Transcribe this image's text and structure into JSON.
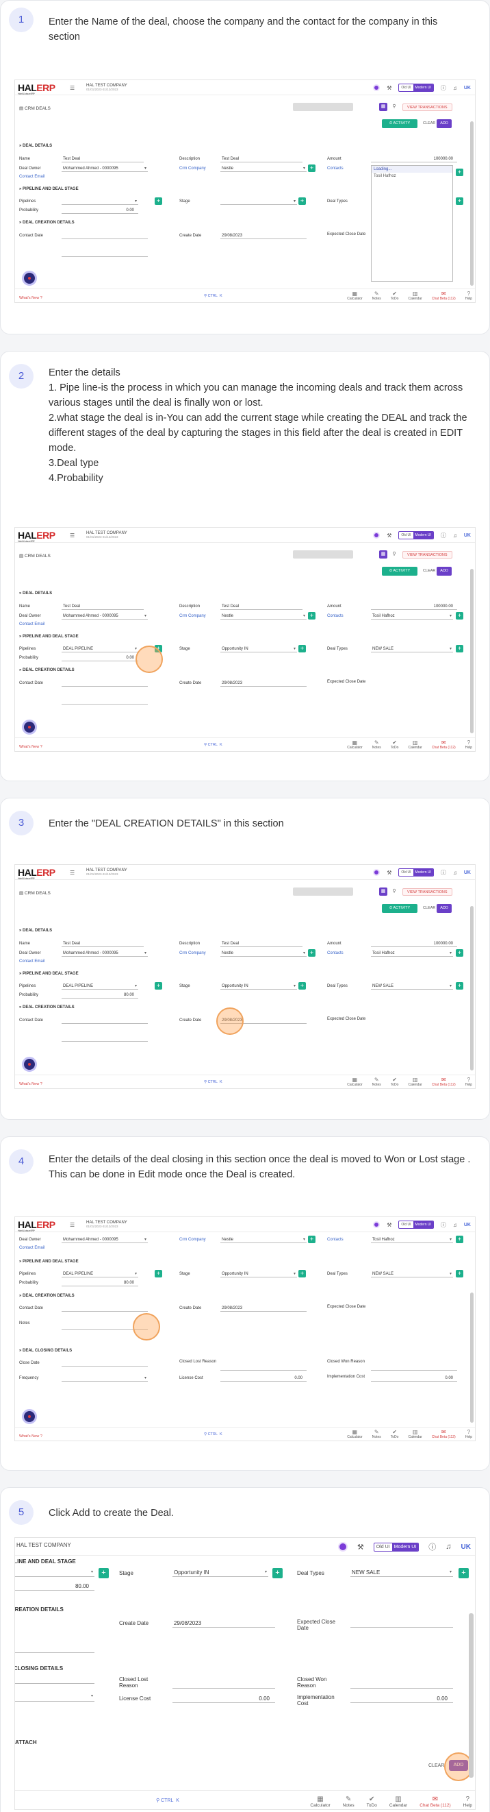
{
  "app": {
    "logo_hal": "HAL",
    "logo_erp": "ERP",
    "logo_tagline": "Hotel & Leisure ERP",
    "company": "HAL TEST COMPANY",
    "company_date": "01/01/2023-31/12/2023",
    "ui_old": "Old UI",
    "ui_modern": "Modern UI",
    "language": "UK",
    "crm_title": "CRM DEALS",
    "view_transactions": "VIEW TRANSACTIONS",
    "activity": "ACTIVITY",
    "clear": "CLEAR",
    "add": "ADD",
    "whats_new": "What's New ?",
    "ctrl": "CTRL",
    "ctrl_key": "K",
    "bottom_tools": [
      "Calculator",
      "Notes",
      "ToDo",
      "Calendar",
      "Chat Beta (112)",
      "Help"
    ]
  },
  "form": {
    "deal_details": "DEAL DETAILS",
    "name_label": "Name",
    "name_value": "Test Deal",
    "description_label": "Description",
    "description_value": "Test Deal",
    "amount_label": "Amount",
    "amount_value": "100000.00",
    "deal_owner_label": "Deal Owner",
    "deal_owner_value": "Mohammed Ahmed - 0000095",
    "crm_company_label": "Crm Company",
    "crm_company_value": "Nestle",
    "contacts_label": "Contacts",
    "contacts_loading": "Loading...",
    "contacts_value": "Tosil Hafhoz",
    "contact_email_label": "Contact Email",
    "pipeline_section": "PIPELINE AND DEAL STAGE",
    "pipeline_label": "Pipelines",
    "pipeline_value": "DEAL PIPELINE",
    "stage_label": "Stage",
    "stage_value": "Opportunity IN",
    "deal_types_label": "Deal Types",
    "deal_types_value": "NEW SALE",
    "probability_label": "Probability",
    "probability_initial": "0.00",
    "probability_value": "80.00",
    "creation_section": "DEAL CREATION DETAILS",
    "contact_date_label": "Contact Date",
    "create_date_label": "Create Date",
    "create_date_value": "29/08/2023",
    "expected_close_label": "Expected Close Date",
    "notes_label": "Notes",
    "closing_section": "DEAL CLOSING DETAILS",
    "close_date_label": "Close Date",
    "closed_lost_label": "Closed Lost Reason",
    "closed_won_label": "Closed Won Reason",
    "frequency_label": "Frequency",
    "license_cost_label": "License Cost",
    "license_cost_value": "0.00",
    "implementation_cost_label": "Implementation Cost",
    "implementation_cost_value": "0.00",
    "attach_label": "ATTACH"
  },
  "steps": [
    {
      "number": "1",
      "text": "Enter the Name of the deal, choose the company and the contact for the company in this section"
    },
    {
      "number": "2",
      "lines": [
        "Enter the details",
        "1. Pipe line-is the process in which you can manage the incoming deals and track them across various stages until the deal is finally won or lost.",
        "2.what stage the deal is in-You can add the current stage while creating the DEAL and track the different stages of the deal by capturing the stages in this field after the deal is created in EDIT mode.",
        "3.Deal type",
        "4.Probability"
      ]
    },
    {
      "number": "3",
      "text": "Enter the \"DEAL CREATION DETAILS\" in this section"
    },
    {
      "number": "4",
      "text": "Enter the details of the deal closing in this section once the deal is moved to Won or Lost stage . This can be done in Edit mode once the Deal is created."
    },
    {
      "number": "5",
      "text": "Click Add to create the Deal."
    }
  ]
}
